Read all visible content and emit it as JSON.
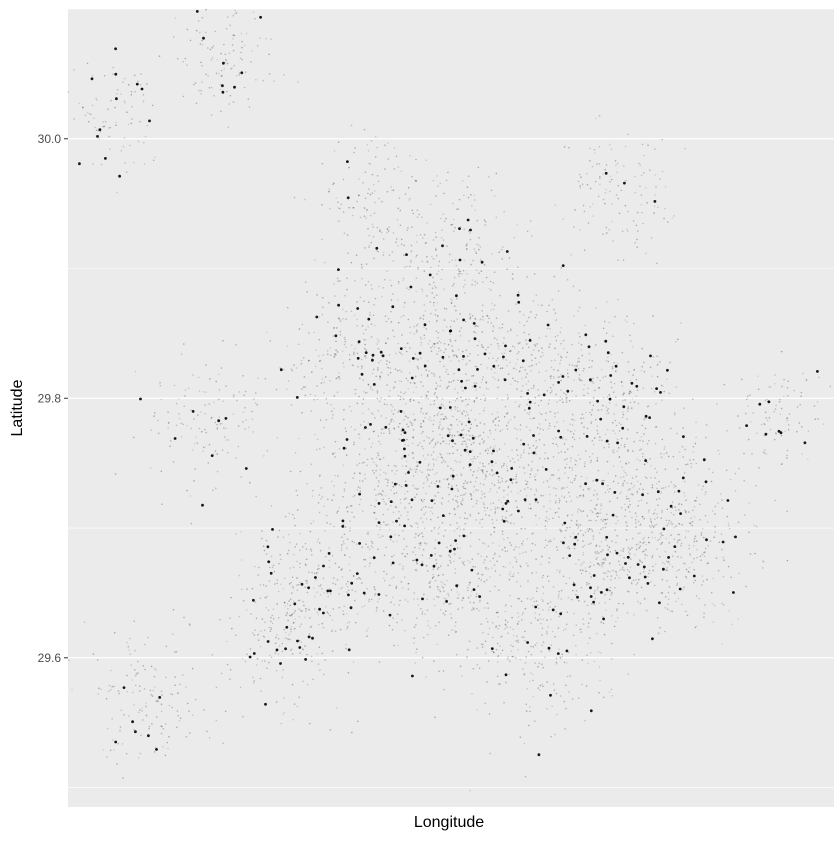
{
  "chart_data": {
    "type": "scatter",
    "title": "",
    "xlabel": "Longitude",
    "ylabel": "Latitude",
    "ylim": [
      29.485,
      30.1
    ],
    "y_ticks": [
      29.6,
      29.8,
      30.0
    ],
    "y_tick_labels": [
      "29.6",
      "29.8",
      "30.0"
    ],
    "x_ticks_shown": false,
    "grid": true,
    "legend": "none",
    "colors": {
      "panel": "#EBEBEB",
      "grid": "#FFFFFF",
      "point": "#000000",
      "axis_text": "#4D4D4D",
      "label": "#000000"
    },
    "note_points": "Dense point cloud of locations; values below are representative cluster centres (lon-relative x in 0–1 of x-range, latitude) with relative density.",
    "clusters": [
      {
        "x": 0.5,
        "y": 29.76,
        "density": 1.0
      },
      {
        "x": 0.46,
        "y": 29.78,
        "density": 0.8
      },
      {
        "x": 0.55,
        "y": 29.74,
        "density": 0.9
      },
      {
        "x": 0.65,
        "y": 29.73,
        "density": 0.85
      },
      {
        "x": 0.75,
        "y": 29.7,
        "density": 0.8
      },
      {
        "x": 0.8,
        "y": 29.69,
        "density": 0.7
      },
      {
        "x": 0.4,
        "y": 29.72,
        "density": 0.6
      },
      {
        "x": 0.32,
        "y": 29.66,
        "density": 0.6
      },
      {
        "x": 0.28,
        "y": 29.62,
        "density": 0.5
      },
      {
        "x": 0.45,
        "y": 29.66,
        "density": 0.5
      },
      {
        "x": 0.55,
        "y": 29.65,
        "density": 0.55
      },
      {
        "x": 0.62,
        "y": 29.6,
        "density": 0.5
      },
      {
        "x": 0.68,
        "y": 29.68,
        "density": 0.6
      },
      {
        "x": 0.35,
        "y": 29.83,
        "density": 0.5
      },
      {
        "x": 0.45,
        "y": 29.85,
        "density": 0.6
      },
      {
        "x": 0.55,
        "y": 29.84,
        "density": 0.55
      },
      {
        "x": 0.66,
        "y": 29.82,
        "density": 0.55
      },
      {
        "x": 0.72,
        "y": 29.79,
        "density": 0.5
      },
      {
        "x": 0.5,
        "y": 29.92,
        "density": 0.4
      },
      {
        "x": 0.4,
        "y": 29.95,
        "density": 0.3
      },
      {
        "x": 0.72,
        "y": 29.96,
        "density": 0.25
      },
      {
        "x": 0.18,
        "y": 29.78,
        "density": 0.3
      },
      {
        "x": 0.1,
        "y": 29.57,
        "density": 0.35
      },
      {
        "x": 0.2,
        "y": 30.06,
        "density": 0.25
      },
      {
        "x": 0.06,
        "y": 30.02,
        "density": 0.15
      },
      {
        "x": 0.92,
        "y": 29.79,
        "density": 0.15
      }
    ]
  }
}
